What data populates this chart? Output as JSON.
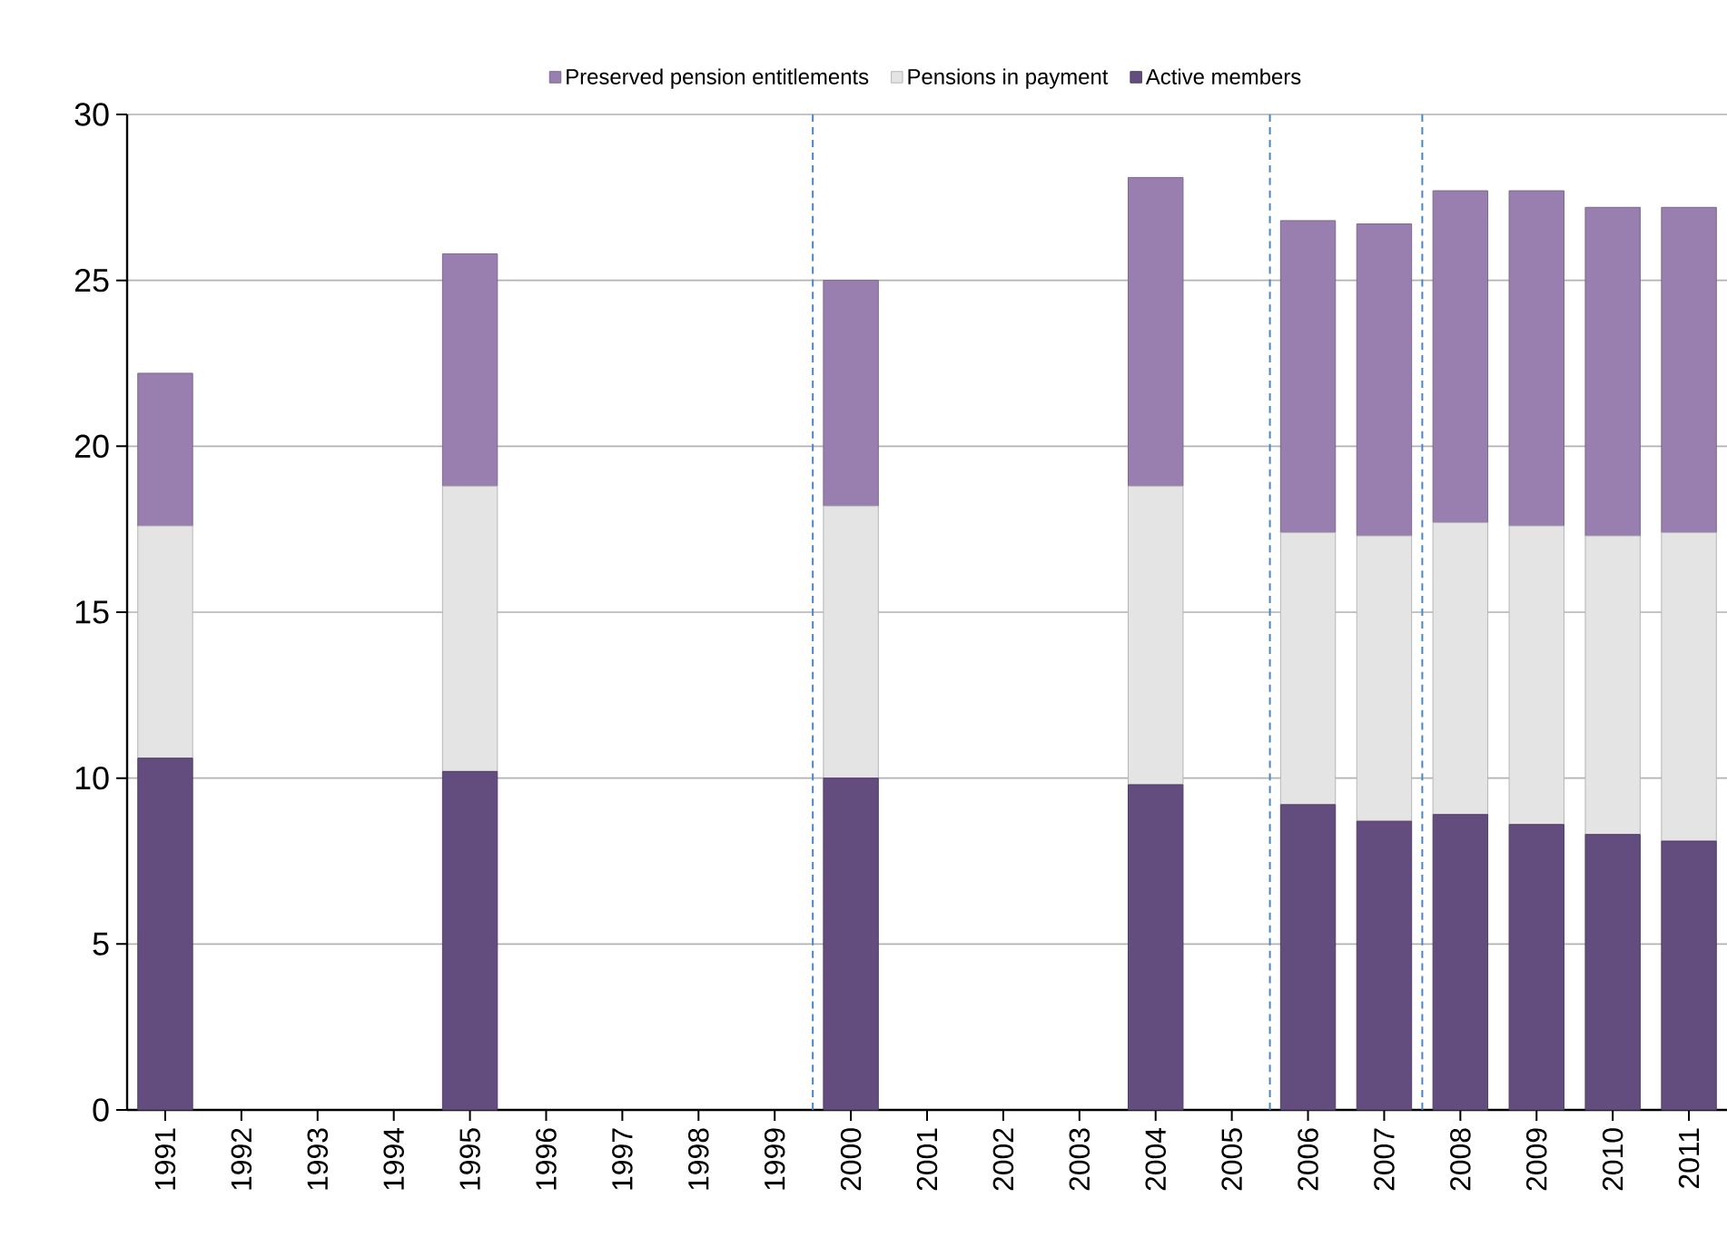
{
  "chart_data": {
    "type": "bar",
    "stacked": true,
    "categories": [
      "1991",
      "1992",
      "1993",
      "1994",
      "1995",
      "1996",
      "1997",
      "1998",
      "1999",
      "2000",
      "2001",
      "2002",
      "2003",
      "2004",
      "2005",
      "2006",
      "2007",
      "2008",
      "2009",
      "2010",
      "2011"
    ],
    "series": [
      {
        "name": "Active members",
        "color": "#634c7e",
        "values": [
          10.6,
          null,
          null,
          null,
          10.2,
          null,
          null,
          null,
          null,
          10.0,
          null,
          null,
          null,
          9.8,
          null,
          9.2,
          8.7,
          8.9,
          8.6,
          8.3,
          8.1
        ]
      },
      {
        "name": "Pensions in payment",
        "color": "#e4e4e4",
        "values": [
          7.0,
          null,
          null,
          null,
          8.6,
          null,
          null,
          null,
          null,
          8.2,
          null,
          null,
          null,
          9.0,
          null,
          8.2,
          8.6,
          8.8,
          9.0,
          9.0,
          9.3
        ]
      },
      {
        "name": "Preserved pension entitlements",
        "color": "#997fb0",
        "values": [
          4.6,
          null,
          null,
          null,
          7.0,
          null,
          null,
          null,
          null,
          6.8,
          null,
          null,
          null,
          9.3,
          null,
          9.4,
          9.4,
          10.0,
          10.1,
          9.9,
          9.8
        ]
      }
    ],
    "ylim": [
      0,
      30
    ],
    "yticks": [
      0,
      5,
      10,
      15,
      20,
      25,
      30
    ],
    "grid": "y",
    "legend": "top"
  }
}
